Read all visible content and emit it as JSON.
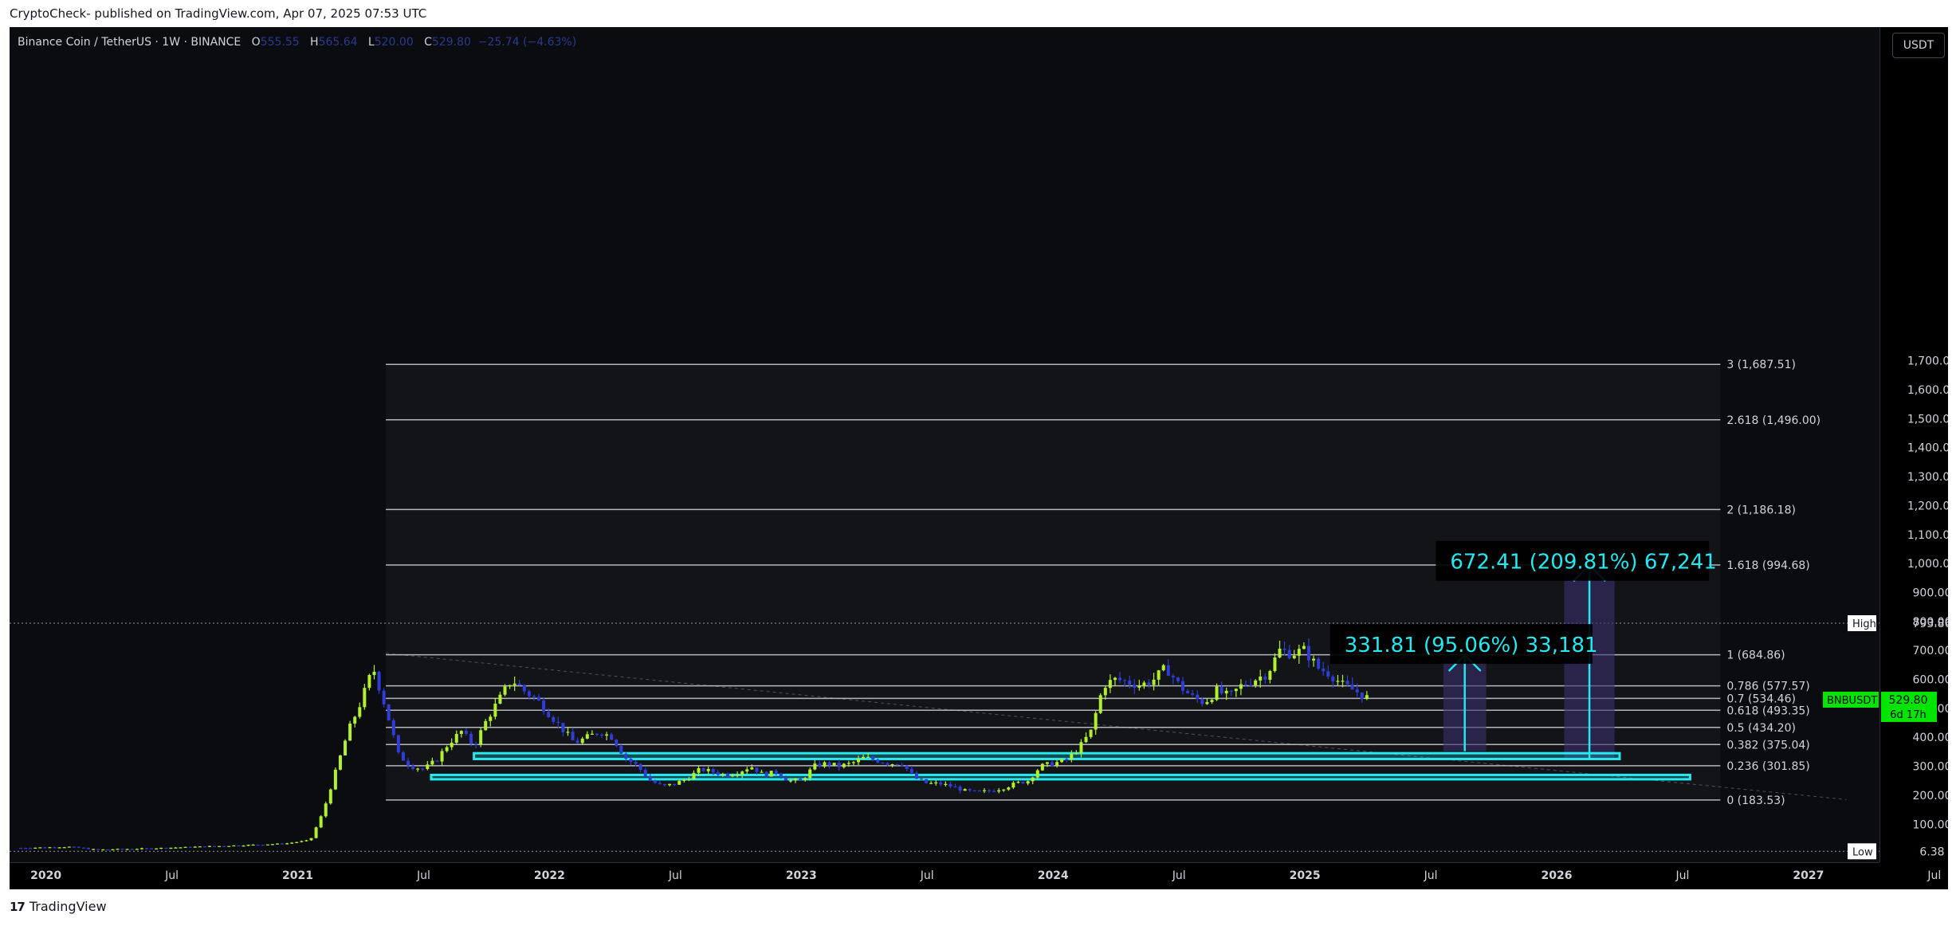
{
  "header": {
    "published": "CryptoCheck- published on TradingView.com, Apr 07, 2025 07:53 UTC"
  },
  "legend": {
    "symbol": "Binance Coin / TetherUS · 1W · BINANCE",
    "o_label": "O",
    "o_value": "555.55",
    "h_label": "H",
    "h_value": "565.64",
    "l_label": "L",
    "l_value": "520.00",
    "c_label": "C",
    "c_value": "529.80",
    "change": "−25.74 (−4.63%)"
  },
  "currency_button": "USDT",
  "footer": {
    "brand": "TradingView",
    "logo": "17"
  },
  "colors": {
    "background": "#0b0c10",
    "bull": "#b2f02e",
    "bear": "#2f3dd6",
    "zone": "#25e8f0",
    "fib_line": "#d1d4dc",
    "projection_fill": "#3a2f6e",
    "price_tag": "#00e500"
  },
  "chart_data": {
    "type": "candlestick",
    "title": "Binance Coin / TetherUS · 1W · BINANCE",
    "xlabel": "",
    "ylabel": "",
    "ylim": [
      0,
      1780
    ],
    "y_ticks": [
      "100.00",
      "200.00",
      "300.00",
      "400.00",
      "500.00",
      "600.00",
      "700.00",
      "800.00",
      "900.00",
      "1,000.00",
      "1,100.00",
      "1,200.00",
      "1,300.00",
      "1,400.00",
      "1,500.00",
      "1,600.00",
      "1,700.00"
    ],
    "x_ticks": [
      {
        "label": "2020",
        "bold": true,
        "t": 2020.0
      },
      {
        "label": "Jul",
        "bold": false,
        "t": 2020.5
      },
      {
        "label": "2021",
        "bold": true,
        "t": 2021.0
      },
      {
        "label": "Jul",
        "bold": false,
        "t": 2021.5
      },
      {
        "label": "2022",
        "bold": true,
        "t": 2022.0
      },
      {
        "label": "Jul",
        "bold": false,
        "t": 2022.5
      },
      {
        "label": "2023",
        "bold": true,
        "t": 2023.0
      },
      {
        "label": "Jul",
        "bold": false,
        "t": 2023.5
      },
      {
        "label": "2024",
        "bold": true,
        "t": 2024.0
      },
      {
        "label": "Jul",
        "bold": false,
        "t": 2024.5
      },
      {
        "label": "2025",
        "bold": true,
        "t": 2025.0
      },
      {
        "label": "Jul",
        "bold": false,
        "t": 2025.5
      },
      {
        "label": "2026",
        "bold": true,
        "t": 2026.0
      },
      {
        "label": "Jul",
        "bold": false,
        "t": 2026.5
      },
      {
        "label": "2027",
        "bold": true,
        "t": 2027.0
      },
      {
        "label": "Jul",
        "bold": false,
        "t": 2027.5
      }
    ],
    "price_path": [
      [
        2019.9,
        18
      ],
      [
        2020.1,
        22
      ],
      [
        2020.2,
        12
      ],
      [
        2020.4,
        16
      ],
      [
        2020.6,
        22
      ],
      [
        2020.8,
        28
      ],
      [
        2020.95,
        33
      ],
      [
        2021.05,
        45
      ],
      [
        2021.1,
        140
      ],
      [
        2021.15,
        280
      ],
      [
        2021.2,
        420
      ],
      [
        2021.25,
        520
      ],
      [
        2021.3,
        640
      ],
      [
        2021.35,
        500
      ],
      [
        2021.4,
        340
      ],
      [
        2021.45,
        300
      ],
      [
        2021.5,
        290
      ],
      [
        2021.55,
        320
      ],
      [
        2021.6,
        380
      ],
      [
        2021.65,
        420
      ],
      [
        2021.7,
        370
      ],
      [
        2021.75,
        460
      ],
      [
        2021.85,
        600
      ],
      [
        2021.9,
        560
      ],
      [
        2021.95,
        530
      ],
      [
        2022.0,
        480
      ],
      [
        2022.05,
        430
      ],
      [
        2022.1,
        380
      ],
      [
        2022.15,
        400
      ],
      [
        2022.2,
        420
      ],
      [
        2022.25,
        400
      ],
      [
        2022.3,
        330
      ],
      [
        2022.35,
        300
      ],
      [
        2022.4,
        250
      ],
      [
        2022.45,
        230
      ],
      [
        2022.5,
        240
      ],
      [
        2022.55,
        260
      ],
      [
        2022.6,
        290
      ],
      [
        2022.65,
        280
      ],
      [
        2022.7,
        270
      ],
      [
        2022.75,
        280
      ],
      [
        2022.8,
        300
      ],
      [
        2022.85,
        270
      ],
      [
        2022.9,
        280
      ],
      [
        2022.95,
        250
      ],
      [
        2023.0,
        250
      ],
      [
        2023.05,
        300
      ],
      [
        2023.1,
        310
      ],
      [
        2023.15,
        300
      ],
      [
        2023.2,
        310
      ],
      [
        2023.25,
        330
      ],
      [
        2023.3,
        320
      ],
      [
        2023.35,
        310
      ],
      [
        2023.4,
        310
      ],
      [
        2023.45,
        260
      ],
      [
        2023.5,
        240
      ],
      [
        2023.55,
        240
      ],
      [
        2023.6,
        230
      ],
      [
        2023.65,
        215
      ],
      [
        2023.7,
        210
      ],
      [
        2023.75,
        215
      ],
      [
        2023.8,
        225
      ],
      [
        2023.85,
        240
      ],
      [
        2023.9,
        250
      ],
      [
        2023.95,
        300
      ],
      [
        2024.0,
        310
      ],
      [
        2024.05,
        320
      ],
      [
        2024.1,
        360
      ],
      [
        2024.15,
        420
      ],
      [
        2024.2,
        580
      ],
      [
        2024.25,
        600
      ],
      [
        2024.3,
        590
      ],
      [
        2024.35,
        580
      ],
      [
        2024.4,
        600
      ],
      [
        2024.45,
        640
      ],
      [
        2024.5,
        580
      ],
      [
        2024.55,
        540
      ],
      [
        2024.6,
        520
      ],
      [
        2024.65,
        560
      ],
      [
        2024.7,
        540
      ],
      [
        2024.75,
        580
      ],
      [
        2024.8,
        600
      ],
      [
        2024.85,
        620
      ],
      [
        2024.9,
        700
      ],
      [
        2024.95,
        690
      ],
      [
        2025.0,
        700
      ],
      [
        2025.05,
        640
      ],
      [
        2025.1,
        620
      ],
      [
        2025.15,
        580
      ],
      [
        2025.2,
        560
      ],
      [
        2025.26,
        530
      ]
    ],
    "fib_levels": [
      {
        "ratio": "0",
        "value": 183.53,
        "label": "0 (183.53)"
      },
      {
        "ratio": "0.236",
        "value": 301.85,
        "label": "0.236 (301.85)"
      },
      {
        "ratio": "0.382",
        "value": 375.04,
        "label": "0.382 (375.04)"
      },
      {
        "ratio": "0.5",
        "value": 434.2,
        "label": "0.5 (434.20)"
      },
      {
        "ratio": "0.618",
        "value": 493.35,
        "label": "0.618 (493.35)"
      },
      {
        "ratio": "0.7",
        "value": 534.46,
        "label": "0.7 (534.46)"
      },
      {
        "ratio": "0.786",
        "value": 577.57,
        "label": "0.786 (577.57)"
      },
      {
        "ratio": "1",
        "value": 684.86,
        "label": "1 (684.86)"
      },
      {
        "ratio": "1.618",
        "value": 994.68,
        "label": "1.618 (994.68)"
      },
      {
        "ratio": "2",
        "value": 1186.18,
        "label": "2 (1,186.18)"
      },
      {
        "ratio": "2.618",
        "value": 1496.0,
        "label": "2.618 (1,496.00)"
      },
      {
        "ratio": "3",
        "value": 1687.51,
        "label": "3 (1,687.51)"
      }
    ],
    "fib_range": {
      "t_start": 2021.35,
      "t_end": 2026.65
    },
    "zones": [
      {
        "t_start": 2021.7,
        "t_end": 2026.25,
        "top": 345,
        "bottom": 325
      },
      {
        "t_start": 2021.53,
        "t_end": 2026.53,
        "top": 270,
        "bottom": 255
      }
    ],
    "projections": [
      {
        "t_start": 2025.55,
        "t_end": 2025.72,
        "from": 352,
        "to": 684,
        "label": "331.81 (95.06%) 33,181",
        "label_t": 2025.1,
        "label_v": 791
      },
      {
        "t_start": 2026.03,
        "t_end": 2026.23,
        "from": 322,
        "to": 994,
        "label": "672.41 (209.81%) 67,241",
        "label_t": 2025.52,
        "label_v": 1078
      }
    ],
    "high": {
      "label": "High",
      "value": 793.86,
      "value_text": "793.86"
    },
    "low": {
      "label": "Low",
      "value": 6.38,
      "value_text": "6.38"
    },
    "last_price": {
      "symbol": "BNBUSDT",
      "value": 529.8,
      "value_text": "529.80",
      "countdown": "6d 17h"
    },
    "trend_line": {
      "t1": 2021.35,
      "v1": 690,
      "t2": 2027.15,
      "v2": 185
    }
  }
}
